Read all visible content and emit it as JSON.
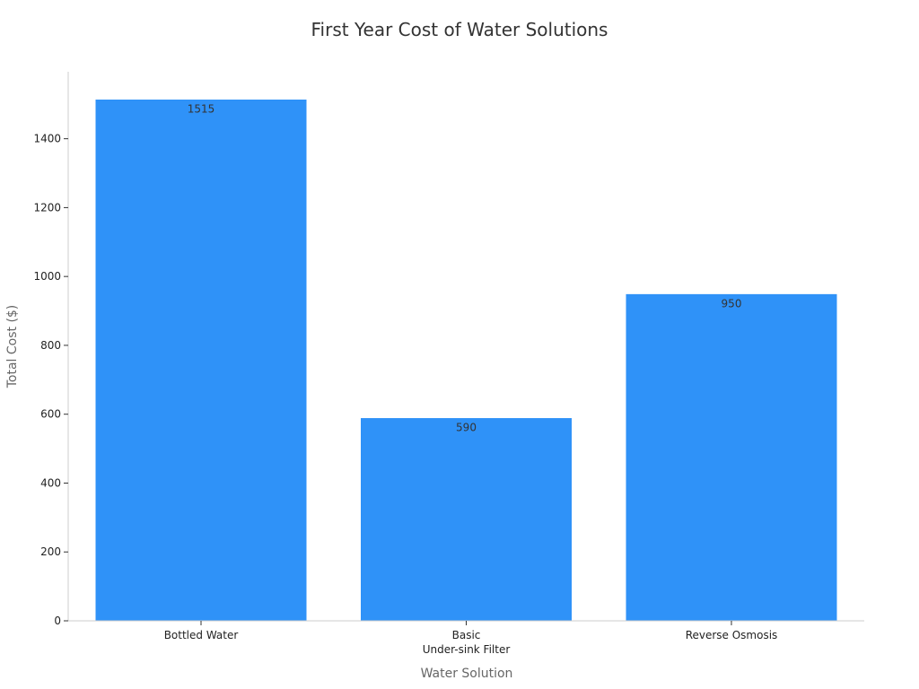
{
  "chart_data": {
    "type": "bar",
    "title": "First Year Cost of Water Solutions",
    "xlabel": "Water Solution",
    "ylabel": "Total Cost ($)",
    "categories": [
      [
        "Bottled Water"
      ],
      [
        "Basic",
        "Under-sink Filter"
      ],
      [
        "Reverse Osmosis"
      ]
    ],
    "values": [
      1515,
      590,
      950
    ],
    "ylim": [
      0,
      1600
    ],
    "yticks": [
      0,
      200,
      400,
      600,
      800,
      1000,
      1200,
      1400
    ],
    "grid": false,
    "legend": "none",
    "colors": {
      "bar": "#2f92f8",
      "bar_edge": "#ffffff",
      "axis": "#cccccc",
      "title": "#333333",
      "axis_label": "#666666",
      "tick_label": "#222222",
      "data_label": "#333333"
    }
  }
}
